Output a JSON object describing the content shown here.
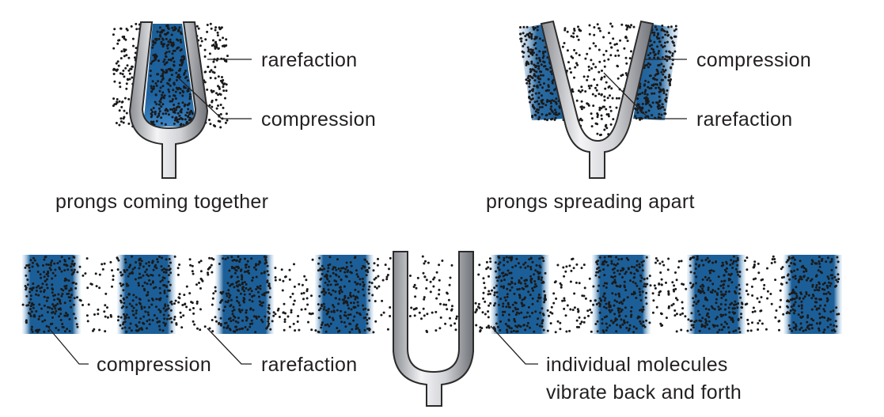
{
  "colors": {
    "compression_blue": "#1c5f98",
    "compression_fade": "#a9c9e6",
    "dot": "#1a1a1a",
    "fork_light": "#f2f2f4",
    "fork_dark": "#7a7d82",
    "text": "#231f20"
  },
  "panels": {
    "top_left": {
      "label_rarefaction": "rarefaction",
      "label_compression": "compression",
      "caption": "prongs coming together"
    },
    "top_right": {
      "label_compression": "compression",
      "label_rarefaction": "rarefaction",
      "caption": "prongs spreading apart"
    },
    "bottom": {
      "label_compression": "compression",
      "label_rarefaction": "rarefaction",
      "label_molecules_line1": "individual molecules",
      "label_molecules_line2": "vibrate back and forth"
    }
  }
}
